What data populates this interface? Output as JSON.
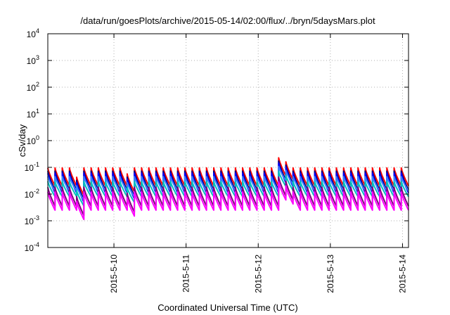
{
  "chart_data": {
    "type": "line",
    "title": "/data/run/goesPlots/archive/2015-05-14/02:00/flux/../bryn/5daysMars.plot",
    "xlabel": "Coordinated Universal Time (UTC)",
    "ylabel": "cSv/day",
    "x_range": [
      "2015-05-09T02:00",
      "2015-05-14T02:00"
    ],
    "x_ticks": [
      "2015-5-10",
      "2015-5-11",
      "2015-5-12",
      "2015-5-13",
      "2015-5-14"
    ],
    "y_scale": "log",
    "ylim": [
      0.0001,
      10000
    ],
    "y_ticks": [
      {
        "base": "10",
        "exp": "-4"
      },
      {
        "base": "10",
        "exp": "-3"
      },
      {
        "base": "10",
        "exp": "-2"
      },
      {
        "base": "10",
        "exp": "-1"
      },
      {
        "base": "10",
        "exp": "0"
      },
      {
        "base": "10",
        "exp": "1"
      },
      {
        "base": "10",
        "exp": "2"
      },
      {
        "base": "10",
        "exp": "3"
      },
      {
        "base": "10",
        "exp": "4"
      }
    ],
    "grid": true,
    "legend": "none",
    "cycle_period_hours": 2.4,
    "anomalies": [
      {
        "time": "2015-05-09T11:30",
        "factor": 0.45
      },
      {
        "time": "2015-05-10T04:30",
        "factor": 0.6
      },
      {
        "time": "2015-05-12T06:00",
        "factor": 2.4
      },
      {
        "time": "2015-05-12T09:00",
        "factor": 1.7
      }
    ],
    "series": [
      {
        "color": "#ff0000",
        "peak": 0.095,
        "trough": 0.02
      },
      {
        "color": "#00007f",
        "peak": 0.072,
        "trough": 0.014
      },
      {
        "color": "#0000ff",
        "peak": 0.06,
        "trough": 0.011
      },
      {
        "color": "#3a7fff",
        "peak": 0.045,
        "trough": 0.013
      },
      {
        "color": "#00bfbf",
        "peak": 0.03,
        "trough": 0.008
      },
      {
        "color": "#7f007f",
        "peak": 0.018,
        "trough": 0.0035
      },
      {
        "color": "#ff00ff",
        "peak": 0.012,
        "trough": 0.0025
      }
    ]
  }
}
